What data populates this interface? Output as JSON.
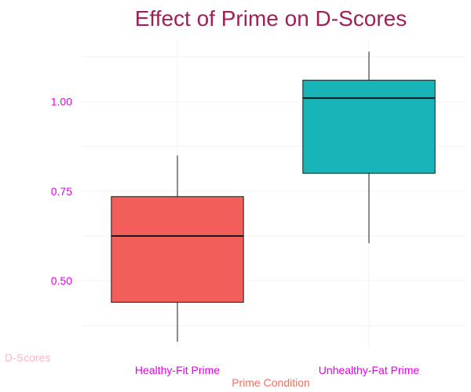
{
  "chart_data": {
    "type": "box",
    "title": "Effect of Prime on D-Scores",
    "xlabel": "Prime Condition",
    "ylabel": "D-Scores",
    "categories": [
      "Healthy-Fit Prime",
      "Unhealthy-Fat Prime"
    ],
    "boxes": [
      {
        "category": "Healthy-Fit Prime",
        "min": 0.33,
        "q1": 0.44,
        "median": 0.625,
        "q3": 0.735,
        "max": 0.85,
        "color": "#F25E5A"
      },
      {
        "category": "Unhealthy-Fat Prime",
        "min": 0.605,
        "q1": 0.8,
        "median": 1.01,
        "q3": 1.06,
        "max": 1.14,
        "color": "#17B4B8"
      }
    ],
    "yticks": [
      0.5,
      0.75,
      1.0
    ],
    "ytick_labels": [
      "0.50",
      "0.75",
      "1.00"
    ],
    "ylim": [
      0.31,
      1.17
    ],
    "grid": true,
    "legend": "none",
    "colors": {
      "title": "#A02158",
      "tick_labels": "#E800E8",
      "xlabel": "#F07060",
      "ylabel": "#F8B8C8",
      "grid": "#F2F2F2",
      "box_stroke": "#1A1A1A"
    }
  }
}
